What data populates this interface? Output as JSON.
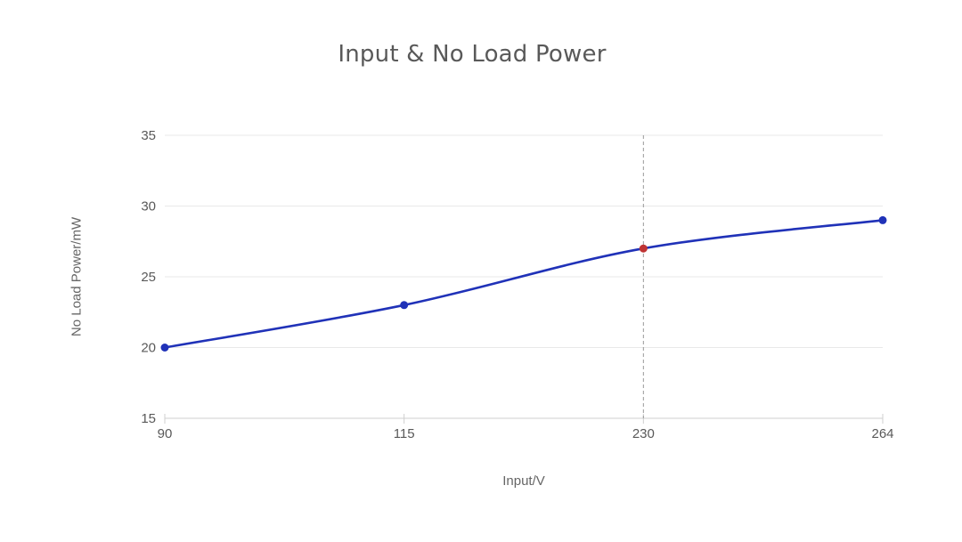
{
  "title": "Input & No Load Power",
  "chart_data": {
    "type": "line",
    "title": "Input & No Load Power",
    "xlabel": "Input/V",
    "ylabel": "No Load Power/mW",
    "categories": [
      "90",
      "115",
      "230",
      "264"
    ],
    "values": [
      20,
      23,
      27,
      29
    ],
    "ylim": [
      15,
      35
    ],
    "yticks": [
      15,
      20,
      25,
      30,
      35
    ],
    "grid": true,
    "legend": "none",
    "line_color": "#2032b8",
    "marker_color": "#2032b8",
    "highlight_index": 2,
    "highlight_color": "#bf3434",
    "reference_line": {
      "category": "230",
      "style": "dashed",
      "color": "#999999"
    },
    "grid_color": "#e9e9e9",
    "axis_color": "#cfcfcf",
    "tick_label_color": "#595959"
  }
}
